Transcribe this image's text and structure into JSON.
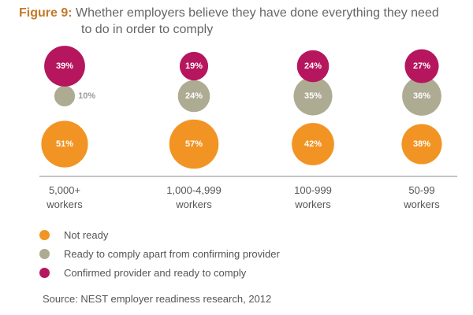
{
  "title": {
    "lead": "Figure 9:",
    "line1": "Whether employers believe they have done everything they need",
    "line2": "to do in order to comply"
  },
  "chart_data": {
    "type": "bubble",
    "unit": "%",
    "categories": [
      [
        "5,000+",
        "workers"
      ],
      [
        "1,000-4,999",
        "workers"
      ],
      [
        "100-999",
        "workers"
      ],
      [
        "50-99",
        "workers"
      ]
    ],
    "series": [
      {
        "name": "Not ready",
        "color": "#f29424",
        "values": [
          51,
          57,
          42,
          38
        ]
      },
      {
        "name": "Ready to comply apart from confirming provider",
        "color": "#aeab93",
        "values": [
          10,
          24,
          35,
          36
        ]
      },
      {
        "name": "Confirmed provider and ready to comply",
        "color": "#b5165e",
        "values": [
          39,
          19,
          24,
          27
        ]
      }
    ],
    "small_label_color": "#9a9a9a",
    "axis_color": "#888888",
    "legend_position": "bottom-left"
  },
  "source": "Source: NEST employer readiness research, 2012"
}
